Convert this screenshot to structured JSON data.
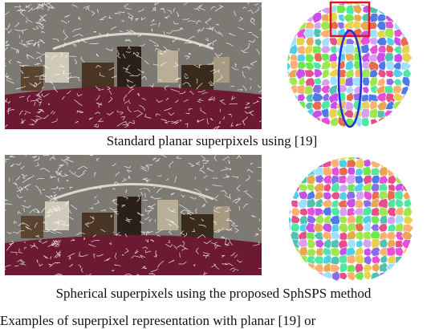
{
  "figure": {
    "caption_top": "Standard planar superpixels using [19]",
    "caption_bottom": "Spherical superpixels using the proposed SphSPS method",
    "figure_caption_fragment": "Examples of superpixel representation with planar [19] or"
  },
  "colors": {
    "highlight_box": "#e0141e",
    "highlight_ellipse": "#1f2fe0",
    "room_wall": "#7c7a72",
    "room_floor": "#6b1a32",
    "room_furniture": "#2a2018",
    "superpixel_border": "#ffffff"
  },
  "icons": {
    "pano_top": "equirectangular-room-image",
    "sphere_top": "sphere-planar-superpixels",
    "pano_bottom": "equirectangular-room-image",
    "sphere_bottom": "sphere-spherical-superpixels"
  }
}
